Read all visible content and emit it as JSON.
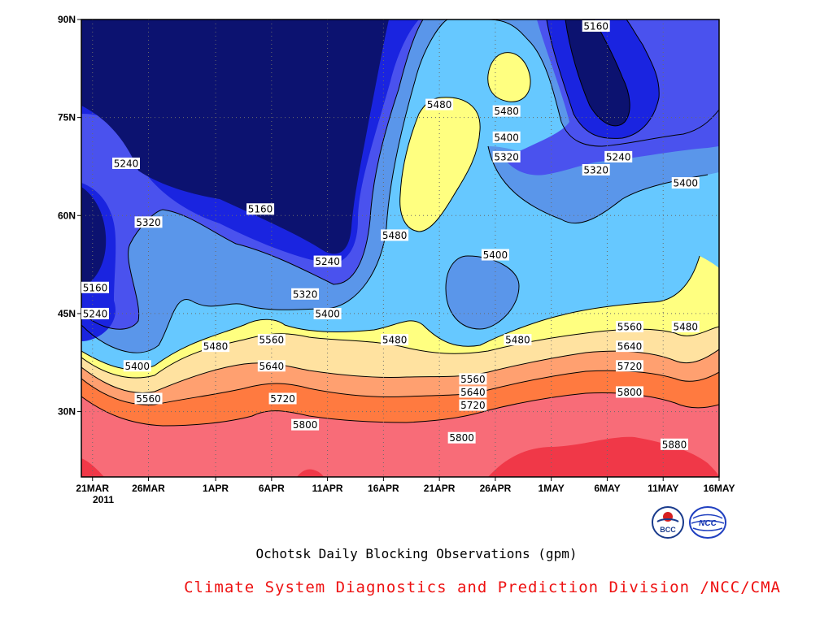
{
  "chart_data": {
    "type": "heatmap",
    "subtype": "filled-contour",
    "title": "Ochotsk Daily Blocking Observations (gpm)",
    "xlabel": "",
    "ylabel": "",
    "x_ticks": [
      "21MAR",
      "26MAR",
      "1APR",
      "6APR",
      "11APR",
      "16APR",
      "21APR",
      "26APR",
      "1MAY",
      "6MAY",
      "11MAY",
      "16MAY"
    ],
    "x_year_label": "2011",
    "y_ticks": [
      "30N",
      "45N",
      "60N",
      "75N",
      "90N"
    ],
    "xlim": [
      "2011-03-20",
      "2011-05-16"
    ],
    "ylim": [
      20,
      90
    ],
    "units": "gpm",
    "contour_levels": [
      5160,
      5240,
      5320,
      5400,
      5480,
      5560,
      5640,
      5720,
      5800,
      5880
    ],
    "colors": {
      "lt5160": "#0c1270",
      "5160-5240": "#1a24e0",
      "5240-5320": "#4a52ee",
      "5320-5400": "#5a96ea",
      "5400-5480": "#66c8ff",
      "5480-5560": "#ffff80",
      "5560-5640": "#ffe2a0",
      "5640-5720": "#ffa070",
      "5720-5800": "#ff7a40",
      "5800-5880": "#f86c78",
      "gt5880": "#f03848"
    },
    "contour_labels": [
      {
        "text": "5160",
        "date": "2011-05-05",
        "lat": 89
      },
      {
        "text": "5240",
        "date": "2011-03-24",
        "lat": 68
      },
      {
        "text": "5160",
        "date": "2011-04-05",
        "lat": 61
      },
      {
        "text": "5320",
        "date": "2011-03-26",
        "lat": 59
      },
      {
        "text": "5480",
        "date": "2011-04-21",
        "lat": 77
      },
      {
        "text": "5480",
        "date": "2011-04-27",
        "lat": 76
      },
      {
        "text": "5400",
        "date": "2011-04-27",
        "lat": 72
      },
      {
        "text": "5320",
        "date": "2011-04-27",
        "lat": 69
      },
      {
        "text": "5240",
        "date": "2011-05-07",
        "lat": 69
      },
      {
        "text": "5320",
        "date": "2011-05-05",
        "lat": 67
      },
      {
        "text": "5400",
        "date": "2011-05-13",
        "lat": 65
      },
      {
        "text": "5480",
        "date": "2011-04-17",
        "lat": 57
      },
      {
        "text": "5400",
        "date": "2011-04-26",
        "lat": 54
      },
      {
        "text": "5240",
        "date": "2011-04-11",
        "lat": 53
      },
      {
        "text": "5160",
        "date": "2011-03-20",
        "lat": 49
      },
      {
        "text": "5320",
        "date": "2011-04-09",
        "lat": 48
      },
      {
        "text": "5240",
        "date": "2011-03-20",
        "lat": 45
      },
      {
        "text": "5400",
        "date": "2011-04-11",
        "lat": 45
      },
      {
        "text": "5560",
        "date": "2011-04-06",
        "lat": 41
      },
      {
        "text": "5480",
        "date": "2011-04-01",
        "lat": 40
      },
      {
        "text": "5480",
        "date": "2011-04-17",
        "lat": 41
      },
      {
        "text": "5480",
        "date": "2011-04-28",
        "lat": 41
      },
      {
        "text": "5560",
        "date": "2011-05-08",
        "lat": 43
      },
      {
        "text": "5480",
        "date": "2011-05-13",
        "lat": 43
      },
      {
        "text": "5640",
        "date": "2011-05-08",
        "lat": 40
      },
      {
        "text": "5400",
        "date": "2011-03-25",
        "lat": 37
      },
      {
        "text": "5640",
        "date": "2011-04-06",
        "lat": 37
      },
      {
        "text": "5560",
        "date": "2011-04-24",
        "lat": 35
      },
      {
        "text": "5720",
        "date": "2011-05-08",
        "lat": 37
      },
      {
        "text": "5640",
        "date": "2011-04-24",
        "lat": 33
      },
      {
        "text": "5560",
        "date": "2011-03-26",
        "lat": 32
      },
      {
        "text": "5720",
        "date": "2011-04-07",
        "lat": 32
      },
      {
        "text": "5800",
        "date": "2011-05-08",
        "lat": 33
      },
      {
        "text": "5720",
        "date": "2011-04-24",
        "lat": 31
      },
      {
        "text": "5800",
        "date": "2011-04-09",
        "lat": 28
      },
      {
        "text": "5800",
        "date": "2011-04-23",
        "lat": 26
      },
      {
        "text": "5880",
        "date": "2011-05-12",
        "lat": 25
      }
    ]
  },
  "caption": "Ochotsk Daily Blocking Observations (gpm)",
  "credit": "Climate System Diagnostics and Prediction Division /NCC/CMA",
  "logos": {
    "left": {
      "icon": "bcc-logo",
      "text": "BCC"
    },
    "right": {
      "icon": "ncc-logo",
      "text": "NCC"
    }
  }
}
